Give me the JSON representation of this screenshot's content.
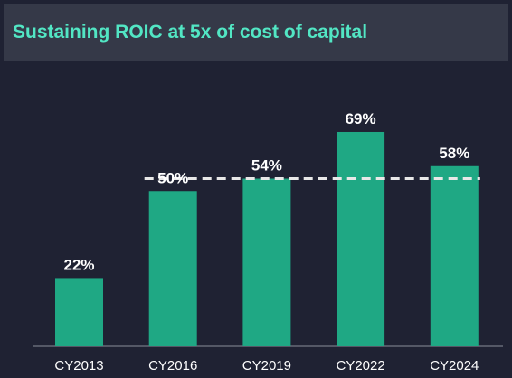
{
  "colors": {
    "background": "#1f2233",
    "header": "#353948",
    "title": "#52e6c4",
    "bar": "#1fa884",
    "reference_line": "#e8e8e8",
    "axis": "#8a8d99"
  },
  "chart_data": {
    "type": "bar",
    "title": "Sustaining ROIC at 5x of cost of capital",
    "categories": [
      "CY2013",
      "CY2016",
      "CY2019",
      "CY2022",
      "CY2024"
    ],
    "values": [
      22,
      50,
      54,
      69,
      58
    ],
    "value_labels": [
      "22%",
      "50%",
      "54%",
      "69%",
      "58%"
    ],
    "unit": "%",
    "ylim": [
      0,
      80
    ],
    "reference_line": {
      "value": 54,
      "style": "dashed",
      "from_category": "CY2016"
    },
    "grid": false,
    "legend": "none"
  }
}
